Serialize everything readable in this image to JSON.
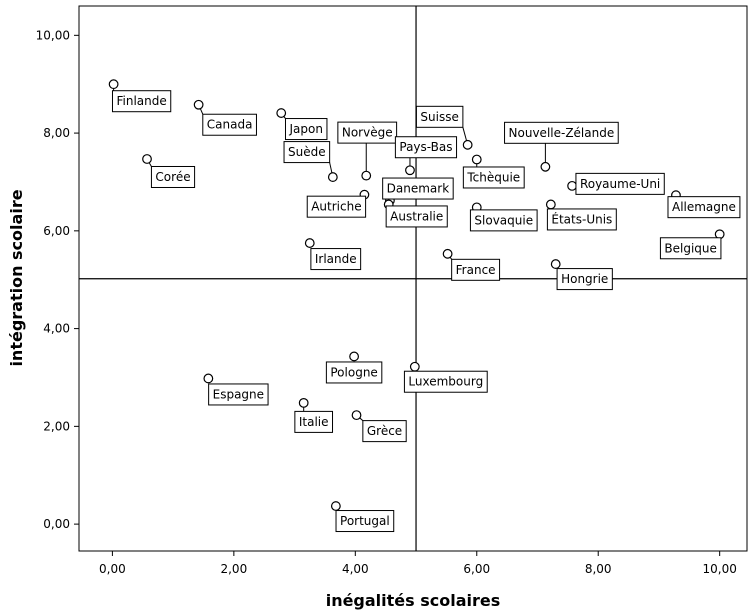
{
  "chart_data": {
    "type": "scatter",
    "xlabel": "inégalités scolaires",
    "ylabel": "intégration scolaire",
    "xlim": [
      -0.55,
      10.45
    ],
    "ylim": [
      -0.55,
      10.6
    ],
    "x_ticks": [
      "0,00",
      "2,00",
      "4,00",
      "6,00",
      "8,00",
      "10,00"
    ],
    "x_tick_values": [
      0,
      2,
      4,
      6,
      8,
      10
    ],
    "y_ticks": [
      "0,00",
      "2,00",
      "4,00",
      "6,00",
      "8,00",
      "10,00"
    ],
    "y_tick_values": [
      0,
      2,
      4,
      6,
      8,
      10
    ],
    "reference_lines": {
      "x": 5.0,
      "y": 5.02
    },
    "grid": false,
    "marker": "open-circle",
    "points": [
      {
        "label": "Finlande",
        "x": 0.02,
        "y": 9.0
      },
      {
        "label": "Canada",
        "x": 1.42,
        "y": 8.58
      },
      {
        "label": "Japon",
        "x": 2.78,
        "y": 8.41
      },
      {
        "label": "Corée",
        "x": 0.57,
        "y": 7.47
      },
      {
        "label": "Norvège",
        "x": 4.18,
        "y": 7.13
      },
      {
        "label": "Suède",
        "x": 3.63,
        "y": 7.1
      },
      {
        "label": "Suisse",
        "x": 5.85,
        "y": 7.76
      },
      {
        "label": "Pays-Bas",
        "x": 4.9,
        "y": 7.24
      },
      {
        "label": "Nouvelle-Zélande",
        "x": 7.13,
        "y": 7.31
      },
      {
        "label": "Tchèquie",
        "x": 6.0,
        "y": 7.46
      },
      {
        "label": "Royaume-Uni",
        "x": 7.57,
        "y": 6.92
      },
      {
        "label": "Danemark",
        "x": 4.57,
        "y": 6.62
      },
      {
        "label": "Autriche",
        "x": 4.15,
        "y": 6.74
      },
      {
        "label": "Australie",
        "x": 4.55,
        "y": 6.54
      },
      {
        "label": "Slovaquie",
        "x": 6.0,
        "y": 6.48
      },
      {
        "label": "États-Unis",
        "x": 7.22,
        "y": 6.54
      },
      {
        "label": "Allemagne",
        "x": 9.28,
        "y": 6.73
      },
      {
        "label": "Belgique",
        "x": 10.0,
        "y": 5.93
      },
      {
        "label": "Irlande",
        "x": 3.25,
        "y": 5.75
      },
      {
        "label": "France",
        "x": 5.52,
        "y": 5.53
      },
      {
        "label": "Hongrie",
        "x": 7.3,
        "y": 5.32
      },
      {
        "label": "Pologne",
        "x": 3.98,
        "y": 3.43
      },
      {
        "label": "Luxembourg",
        "x": 4.98,
        "y": 3.22
      },
      {
        "label": "Espagne",
        "x": 1.58,
        "y": 2.98
      },
      {
        "label": "Italie",
        "x": 3.15,
        "y": 2.48
      },
      {
        "label": "Grèce",
        "x": 4.02,
        "y": 2.23
      },
      {
        "label": "Portugal",
        "x": 3.68,
        "y": 0.37
      }
    ]
  }
}
